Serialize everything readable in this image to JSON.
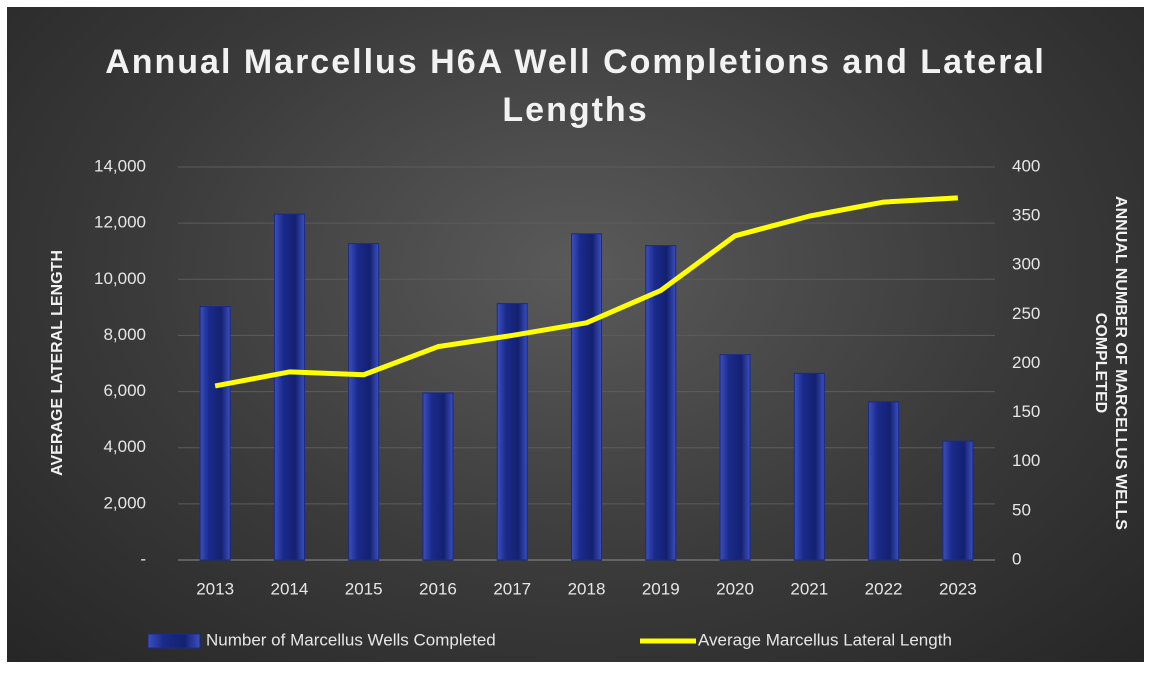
{
  "chart_data": {
    "type": "bar_line",
    "title": "Annual Marcellus H6A Well Completions and Lateral Lengths",
    "y_label": "AVERAGE LATERAL LENGTH",
    "y2_label": "ANNUAL NUMBER OF MARCELLUS WELLS COMPLETED",
    "categories": [
      "2013",
      "2014",
      "2015",
      "2016",
      "2017",
      "2018",
      "2019",
      "2020",
      "2021",
      "2022",
      "2023"
    ],
    "series": [
      {
        "name": "Number of Marcellus Wells Completed",
        "type": "bar",
        "axis": "y2",
        "color": "#1a2a8a",
        "values": [
          258,
          352,
          322,
          170,
          261,
          332,
          320,
          209,
          190,
          161,
          121
        ]
      },
      {
        "name": "Average Marcellus Lateral Length",
        "type": "line",
        "axis": "y",
        "color": "#ffff00",
        "values": [
          6200,
          6700,
          6600,
          7600,
          8000,
          8450,
          9600,
          11550,
          12250,
          12750,
          12900
        ]
      }
    ],
    "ylim": [
      0,
      14000
    ],
    "yticks": [
      {
        "value": 0,
        "label": "-"
      },
      {
        "value": 2000,
        "label": "2,000"
      },
      {
        "value": 4000,
        "label": "4,000"
      },
      {
        "value": 6000,
        "label": "6,000"
      },
      {
        "value": 8000,
        "label": "8,000"
      },
      {
        "value": 10000,
        "label": "10,000"
      },
      {
        "value": 12000,
        "label": "12,000"
      },
      {
        "value": 14000,
        "label": "14,000"
      }
    ],
    "y2lim": [
      0,
      400
    ],
    "y2ticks": [
      0,
      50,
      100,
      150,
      200,
      250,
      300,
      350,
      400
    ],
    "grid": true,
    "legend": "bottom"
  }
}
